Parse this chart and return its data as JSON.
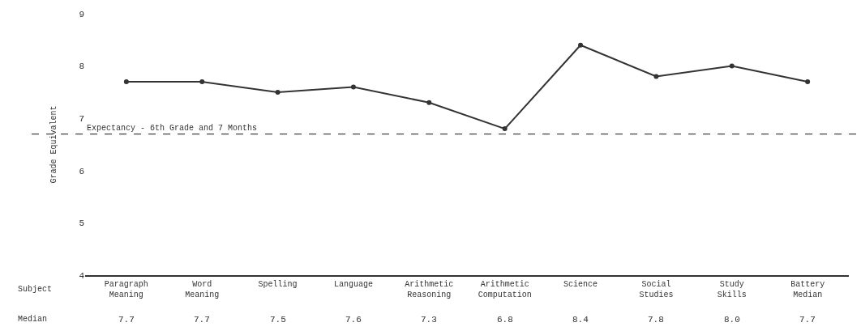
{
  "chart_data": {
    "type": "line",
    "ylabel": "Grade Equivalent",
    "xlabel": "Subject",
    "categories": [
      "Paragraph\nMeaning",
      "Word\nMeaning",
      "Spelling",
      "Language",
      "Arithmetic\nReasoning",
      "Arithmetic\nComputation",
      "Science",
      "Social\nStudies",
      "Study\nSkills",
      "Battery\nMedian"
    ],
    "series": [
      {
        "color": "#333333",
        "values": [
          7.7,
          7.7,
          7.5,
          7.6,
          7.3,
          6.8,
          8.4,
          7.8,
          8.0,
          7.7
        ]
      }
    ],
    "annotations": [
      "Median",
      "7.7",
      "7.7",
      "7.5",
      "7.6",
      "7.3",
      "6.8",
      "8.4",
      "7.8",
      "8.0",
      "7.7"
    ],
    "ref_lines": [
      {
        "axis": "y",
        "value": 6.7,
        "label": "Expectancy - 6th Grade and 7 Months",
        "color": "#444444",
        "line_style": "dashed"
      }
    ],
    "ylim": [
      4,
      9
    ],
    "yticks": [
      4,
      5,
      6,
      7,
      8,
      9
    ],
    "marker": "circle",
    "line_style": "solid"
  }
}
